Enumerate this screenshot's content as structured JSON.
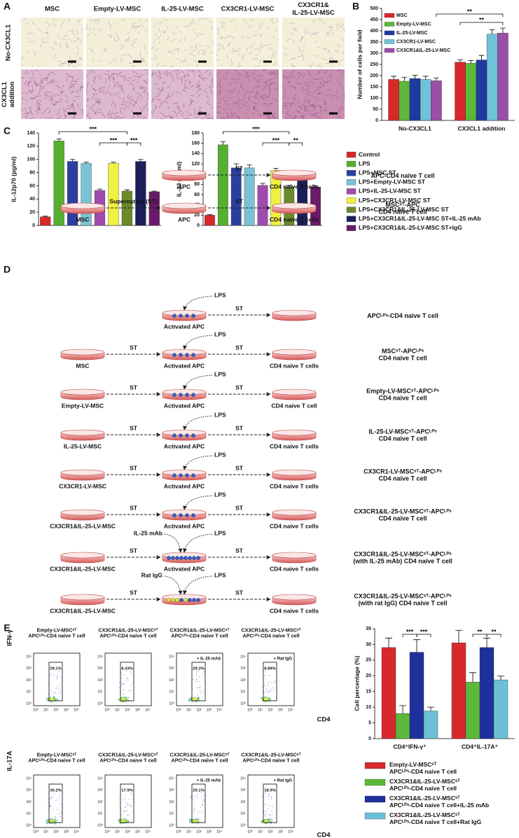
{
  "panel_labels": [
    "A",
    "B",
    "C",
    "D",
    "E"
  ],
  "panel_a": {
    "columns": [
      "MSC",
      "Empty-LV-MSC",
      "IL-25-LV-MSC",
      "CX3CR1-LV-MSC",
      "CX3CR1&\nIL-25-LV-MSC"
    ],
    "rows": [
      "No-CX3CL1",
      "CX3CL1\naddition"
    ]
  },
  "chart_data": [
    {
      "type": "bar",
      "ylabel": "Number of cells per field",
      "categories": [
        "No-CX3CL1",
        "CX3CL1 addition"
      ],
      "series": [
        {
          "name": "MSC",
          "color": "#d8282b",
          "values": [
            183,
            260
          ],
          "errors": [
            14,
            10
          ]
        },
        {
          "name": "Empty-LV-MSC",
          "color": "#5cb83a",
          "values": [
            175,
            255
          ],
          "errors": [
            18,
            12
          ]
        },
        {
          "name": "IL-25-LV-MSC",
          "color": "#1f3a9e",
          "values": [
            187,
            270
          ],
          "errors": [
            14,
            20
          ]
        },
        {
          "name": "CX3CR1-LV-MSC",
          "color": "#6fc3d8",
          "values": [
            183,
            385
          ],
          "errors": [
            14,
            20
          ]
        },
        {
          "name": "CX3CR1&IL-25-LV-MSC",
          "color": "#9b4fa8",
          "values": [
            177,
            390
          ],
          "errors": [
            12,
            22
          ]
        }
      ],
      "ylim": [
        0,
        500
      ],
      "yticks": [
        0,
        50,
        100,
        150,
        200,
        250,
        300,
        350,
        400,
        450,
        500
      ],
      "annotations": [
        "**",
        "**"
      ]
    },
    {
      "type": "bar",
      "ylabel": "IL-12p70 (pg/ml)",
      "values": [
        13,
        128,
        97,
        94,
        53,
        94,
        52,
        97,
        51
      ],
      "errors": [
        1,
        3,
        3,
        2,
        2,
        2,
        2,
        3,
        1
      ],
      "ylim": [
        0,
        140
      ],
      "yticks": [
        0,
        20,
        40,
        60,
        80,
        100,
        120,
        140
      ],
      "annotations": [
        "***",
        "***",
        "***"
      ]
    },
    {
      "type": "bar",
      "ylabel": "IL-23 (pg/ml)",
      "values": [
        20,
        157,
        112,
        112,
        78,
        107,
        75,
        102,
        75
      ],
      "errors": [
        1,
        6,
        8,
        6,
        4,
        4,
        3,
        4,
        2
      ],
      "ylim": [
        0,
        180
      ],
      "yticks": [
        0,
        20,
        40,
        60,
        80,
        100,
        120,
        140,
        160,
        180
      ],
      "annotations": [
        "***",
        "***",
        "**"
      ]
    },
    {
      "type": "bar",
      "ylabel": "Cell percentage (%)",
      "categories": [
        "CD4⁺IFN-γ⁺",
        "CD4⁺IL-17A⁺"
      ],
      "series": [
        {
          "name": "Empty-LV-MSCˢᵀ\nAPCᴸᴾˢ-CD4 naive T cell",
          "color": "#d8282b",
          "values": [
            29,
            30.5
          ],
          "errors": [
            3,
            4
          ]
        },
        {
          "name": "CX3CR1&IL-25-LV-MSCˢᵀ\nAPCᴸᴾˢ-CD4 naive T cell",
          "color": "#5cb83a",
          "values": [
            8,
            18
          ],
          "errors": [
            2.5,
            3
          ]
        },
        {
          "name": "CX3CR1&IL-25-LV-MSCˢᵀ\nAPCᴸᴾˢ-CD4 naive T cell+IL-25 mAb",
          "color": "#1f2f9c",
          "values": [
            27.5,
            29
          ],
          "errors": [
            4,
            3
          ]
        },
        {
          "name": "CX3CR1&IL-25-LV-MSCˢᵀ\nAPCᴸᴾˢ-CD4 naive T cell+Rat IgG",
          "color": "#6cc0d6",
          "values": [
            8.8,
            18.7
          ],
          "errors": [
            1.2,
            1.2
          ]
        }
      ],
      "ylim": [
        0,
        35
      ],
      "yticks": [
        0,
        5,
        10,
        15,
        20,
        25,
        30,
        35
      ],
      "annotations": [
        "***",
        "***",
        "**",
        "**"
      ]
    }
  ],
  "panel_c_legend": [
    {
      "name": "Control",
      "color": "#d8282b"
    },
    {
      "name": "LPS",
      "color": "#56b030"
    },
    {
      "name": "LPS+MSC ST",
      "color": "#2a3fa0"
    },
    {
      "name": "LPS+Empty-LV-MSC ST",
      "color": "#7ac3d6"
    },
    {
      "name": "LPS+IL-25-LV-MSC ST",
      "color": "#a04ab0"
    },
    {
      "name": "LPS+CX3CR1-LV-MSC ST",
      "color": "#f0f040"
    },
    {
      "name": "LPS+CX3CR1&IL-25-LV-MSC ST",
      "color": "#6b8a2a"
    },
    {
      "name": "LPS+CX3CR1&IL-25-LV-MSC ST+IL-25 mAb",
      "color": "#1a1f5a"
    },
    {
      "name": "LPS+CX3CR1&IL-25-LV-MSC ST+IgG",
      "color": "#6a1a6a"
    }
  ],
  "panel_d": {
    "rows": [
      {
        "middle": "APC",
        "st2": "ST",
        "target": "CD4 naive T cells",
        "description": "APC-CD4 naive T cell"
      },
      {
        "source": "MSC",
        "st1": "Supernatant (ST)",
        "middle": "APC",
        "st2": "ST",
        "target": "CD4 naive T cells",
        "description": "MSCˢᵀ-APC\nCD4 naive T cell"
      },
      {
        "lps": "LPS",
        "middle": "Activated APC",
        "st2": "ST",
        "description": "APCᴸᴾˢ-CD4 naive T cell"
      },
      {
        "source": "MSC",
        "st1": "ST",
        "lps": "LPS",
        "middle": "Activated APC",
        "st2": "ST",
        "target": "CD4 naive T cells",
        "description": "MSCˢᵀ-APCᴸᴾˢ\nCD4 naive T cell"
      },
      {
        "source": "Empty-LV-MSC",
        "st1": "ST",
        "lps": "LPS",
        "middle": "Activated APC",
        "st2": "ST",
        "target": "CD4 naive T cell",
        "description": "Empty-LV-MSCˢᵀ-APCᴸᴾˢ\nCD4 naive T cell"
      },
      {
        "source": "IL-25-LV-MSC",
        "st1": "ST",
        "lps": "LPS",
        "middle": "Activated APC",
        "st2": "ST",
        "target": "CD4 naive T cells",
        "description": "IL-25-LV-MSCˢᵀ-APCᴸᴾˢ\nCD4 naive T cell"
      },
      {
        "source": "CX3CR1-LV-MSC",
        "st1": "ST",
        "lps": "LPS",
        "middle": "Activated APC",
        "st2": "ST",
        "target": "CD4 naive T cells",
        "description": "CX3CR1-LV-MSCˢᵀ-APCᴸᴾˢ\nCD4 naive T cell"
      },
      {
        "source": "CX3CR1&IL-25-LV-MSC",
        "st1": "ST",
        "lps": "LPS",
        "middle": "Activated APC",
        "st2": "ST",
        "target": "CD4 naive T cells",
        "description": "CX3CR1&IL-25-LV-MSCˢᵀ-APCᴸᴾˢ\nCD4 naive T cell"
      },
      {
        "source": "CX3CR1&IL-25-LV-MSC",
        "st1": "ST",
        "antibody": "IL-25 mAb",
        "lps": "LPS",
        "middle": "Activated APC",
        "st2": "ST",
        "target": "CD4 naive T cells",
        "description": "CX3CR1&IL-25-LV-MSCˢᵀ-APCᴸᴾˢ\n(with IL-25 mAb) CD4 naive T cell"
      },
      {
        "source": "CX3CR1&IL-25-LV-MSC",
        "st1": "ST",
        "antibody": "Rat IgG",
        "lps": "LPS",
        "st2": "ST",
        "target": "CD4 naive T cells",
        "description": "CX3CR1&IL-25-LV-MSCˢᵀ-APCᴸᴾˢ\n(with rat IgG) CD4 naive T cell"
      }
    ]
  },
  "panel_e": {
    "y_labels": [
      "IFN-γ",
      "IL-17A"
    ],
    "x_label": "CD4",
    "ticks": [
      "10⁰",
      "10¹",
      "10²",
      "10³",
      "10⁴"
    ],
    "rows": [
      {
        "plots": [
          {
            "title": "Empty-LV-MSCˢᵀ\nAPCᴸᴾˢ-CD4 naive T cell",
            "gate": "29.1%"
          },
          {
            "title": "CX3CR1&IL-25-LV-MSCˢᵀ\nAPCᴸᴾˢ-CD4 naive T cell",
            "gate": "8.33%"
          },
          {
            "title": "CX3CR1&IL-25-LV-MSCˢᵀ\nAPCᴸᴾˢ-CD4 naive T cell",
            "gate": "29.3%",
            "note": "+ IL-25 mAb"
          },
          {
            "title": "CX3CR1&IL-25-LV-MSCˢᵀ\nAPCᴸᴾˢ-CD4 naive T cell",
            "gate": "8.89%",
            "note": "+ Rat IgG"
          }
        ]
      },
      {
        "plots": [
          {
            "title": "Empty-LV-MSCˢᵀ\nAPCᴸᴾˢ-CD4 naive T cell",
            "gate": "30.2%"
          },
          {
            "title": "CX3CR1&IL-25-LV-MSCˢᵀ\nAPCᴸᴾˢ-CD4 naive T cell",
            "gate": "17.9%"
          },
          {
            "title": "CX3CR1&IL-25-LV-MSCˢᵀ\nAPCᴸᴾˢ-CD4 naive T cell",
            "gate": "29.1%",
            "note": "+ IL-25 mAb"
          },
          {
            "title": "CX3CR1&IL-25-LV-MSCˢᵀ\nAPCᴸᴾˢ-CD4 naive T cell",
            "gate": "18.9%",
            "note": "+ Rat IgG"
          }
        ]
      }
    ]
  }
}
